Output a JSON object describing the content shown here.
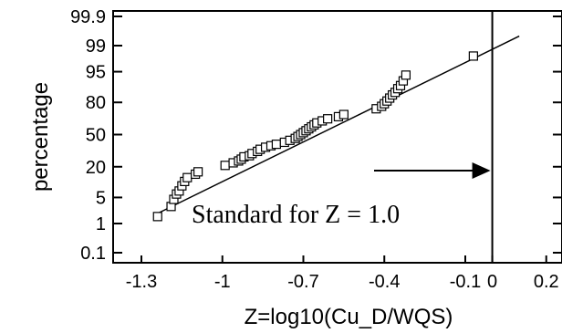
{
  "chart_data": {
    "type": "scatter",
    "title": "",
    "xlabel": "Z=log10(Cu_D/WQS)",
    "ylabel": "percentage",
    "x_scale": "linear",
    "y_scale": "normal-probability",
    "xlim": [
      -1.3,
      0.2
    ],
    "x_ticks": [
      -1.3,
      -1,
      -0.7,
      -0.4,
      -0.1,
      0,
      0.2
    ],
    "x_tick_labels": [
      "-1.3",
      "-1",
      "-0.7",
      "-0.4",
      "-0.1",
      "0",
      "0.2"
    ],
    "y_ticks": [
      0.1,
      1,
      5,
      20,
      50,
      80,
      95,
      99,
      99.9
    ],
    "y_tick_labels": [
      "0.1",
      "1",
      "5",
      "20",
      "50",
      "80",
      "95",
      "99",
      "99.9"
    ],
    "grid": false,
    "series": [
      {
        "marker": "open-square",
        "points": [
          [
            -1.24,
            1.6
          ],
          [
            -1.19,
            3.0
          ],
          [
            -1.18,
            4.5
          ],
          [
            -1.17,
            6.0
          ],
          [
            -1.16,
            7.0
          ],
          [
            -1.15,
            9.0
          ],
          [
            -1.14,
            11.0
          ],
          [
            -1.13,
            13.0
          ],
          [
            -1.1,
            15.0
          ],
          [
            -1.09,
            16.5
          ],
          [
            -0.99,
            21.0
          ],
          [
            -0.96,
            23.0
          ],
          [
            -0.94,
            24.5
          ],
          [
            -0.93,
            26.0
          ],
          [
            -0.92,
            28.0
          ],
          [
            -0.9,
            29.0
          ],
          [
            -0.89,
            31.0
          ],
          [
            -0.87,
            33.0
          ],
          [
            -0.86,
            35.0
          ],
          [
            -0.84,
            37.0
          ],
          [
            -0.82,
            38.5
          ],
          [
            -0.8,
            40.0
          ],
          [
            -0.77,
            42.0
          ],
          [
            -0.75,
            44.0
          ],
          [
            -0.73,
            46.0
          ],
          [
            -0.72,
            48.0
          ],
          [
            -0.71,
            50.0
          ],
          [
            -0.7,
            52.0
          ],
          [
            -0.69,
            54.0
          ],
          [
            -0.68,
            56.0
          ],
          [
            -0.67,
            58.0
          ],
          [
            -0.66,
            60.0
          ],
          [
            -0.65,
            62.0
          ],
          [
            -0.63,
            64.0
          ],
          [
            -0.61,
            66.0
          ],
          [
            -0.57,
            68.0
          ],
          [
            -0.55,
            70.0
          ],
          [
            -0.43,
            75.0
          ],
          [
            -0.41,
            77.0
          ],
          [
            -0.4,
            79.0
          ],
          [
            -0.39,
            81.0
          ],
          [
            -0.38,
            83.0
          ],
          [
            -0.37,
            85.0
          ],
          [
            -0.36,
            86.5
          ],
          [
            -0.35,
            88.5
          ],
          [
            -0.34,
            90.0
          ],
          [
            -0.33,
            92.0
          ],
          [
            -0.32,
            94.0
          ],
          [
            -0.07,
            98.0
          ]
        ]
      }
    ],
    "fit_line": {
      "x": [
        -1.25,
        0.1
      ],
      "y": [
        1.8,
        99.5
      ]
    },
    "reference_line": {
      "x": 0,
      "label": ""
    },
    "annotations": [
      {
        "text": "Standard for Z = 1.0",
        "arrow": "right",
        "x_end": 0
      }
    ]
  }
}
